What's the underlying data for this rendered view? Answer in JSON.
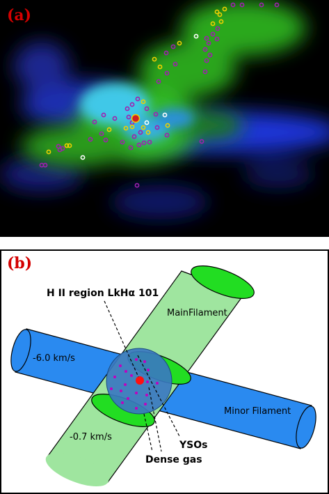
{
  "panel_a": {
    "label": "(a)",
    "marker_colors": {
      "magenta": "#a020b0",
      "yellow": "#f0d000",
      "white": "#ffffff",
      "center": "#d02020"
    }
  },
  "panel_b": {
    "label": "(b)",
    "labels": {
      "hii_region": "H II region LkHα 101",
      "main_filament": "MainFilament",
      "minor_filament": "Minor Filament",
      "velocity_blue": "-6.0 km/s",
      "velocity_green": "-0.7 km/s",
      "ysos": "YSOs",
      "dense_gas": "Dense gas"
    },
    "colors": {
      "main_filament_body": "#9fe59f",
      "main_filament_cap": "#22dd22",
      "minor_filament": "#2a8af0",
      "dense_gas": "#3a78c0",
      "yso_dots": "#c000c0",
      "center_source": "#ff1010"
    }
  }
}
